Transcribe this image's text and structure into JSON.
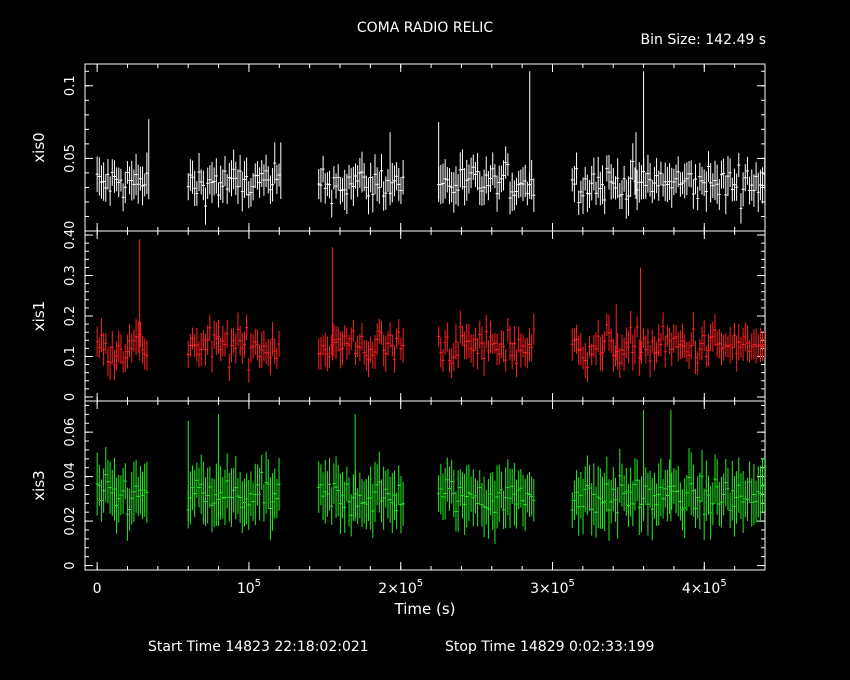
{
  "title": "COMA RADIO RELIC",
  "bin_size_label": "Bin Size:  142.49  s",
  "footer": {
    "start": "Start Time 14823 22:18:02:021",
    "stop": "Stop Time 14829  0:02:33:199"
  },
  "colors": {
    "background": "#000000",
    "axes": "#ffffff",
    "xis0": "#ffffff",
    "xis1": "#ff2020",
    "xis3": "#22ee22"
  },
  "chart_data": {
    "type": "scatter",
    "xlabel": "Time (s)",
    "xlim": [
      -8000,
      440000
    ],
    "x_ticks": [
      {
        "value": 0,
        "label": "0",
        "exp": ""
      },
      {
        "value": 100000,
        "label": "10",
        "exp": "5"
      },
      {
        "value": 200000,
        "label": "2×10",
        "exp": "5"
      },
      {
        "value": 300000,
        "label": "3×10",
        "exp": "5"
      },
      {
        "value": 400000,
        "label": "4×10",
        "exp": "5"
      }
    ],
    "segments": [
      [
        0,
        34000
      ],
      [
        60000,
        121000
      ],
      [
        146000,
        202000
      ],
      [
        225000,
        289000
      ],
      [
        313000,
        440000
      ]
    ],
    "panels": [
      {
        "name": "xis0",
        "ylabel": "xis0",
        "color": "#ffffff",
        "ylim": [
          0.0,
          0.115
        ],
        "y_ticks": [
          {
            "value": 0.05,
            "label": "0.05"
          },
          {
            "value": 0.1,
            "label": "0.1"
          }
        ],
        "base": 0.033,
        "spread": 0.012,
        "err": 0.011,
        "spikes": [
          {
            "x": 34000,
            "y": 0.077
          },
          {
            "x": 121000,
            "y": 0.061
          },
          {
            "x": 193000,
            "y": 0.068
          },
          {
            "x": 225000,
            "y": 0.075
          },
          {
            "x": 285000,
            "y": 0.11
          },
          {
            "x": 360000,
            "y": 0.11
          },
          {
            "x": 355000,
            "y": 0.068
          }
        ]
      },
      {
        "name": "xis1",
        "ylabel": "xis1",
        "color": "#ff2020",
        "ylim": [
          -0.01,
          0.41
        ],
        "y_ticks": [
          {
            "value": 0,
            "label": "0"
          },
          {
            "value": 0.1,
            "label": "0.1"
          },
          {
            "value": 0.2,
            "label": "0.2"
          },
          {
            "value": 0.3,
            "label": "0.3"
          },
          {
            "value": 0.4,
            "label": "0.40"
          }
        ],
        "base": 0.125,
        "spread": 0.045,
        "err": 0.035,
        "spikes": [
          {
            "x": 28000,
            "y": 0.39
          },
          {
            "x": 155000,
            "y": 0.37
          },
          {
            "x": 358000,
            "y": 0.32
          },
          {
            "x": 342000,
            "y": 0.23
          }
        ]
      },
      {
        "name": "xis3",
        "ylabel": "xis3",
        "color": "#22ee22",
        "ylim": [
          -0.002,
          0.074
        ],
        "y_ticks": [
          {
            "value": 0,
            "label": "0"
          },
          {
            "value": 0.02,
            "label": "0.02"
          },
          {
            "value": 0.04,
            "label": "0.04"
          },
          {
            "value": 0.06,
            "label": "0.06"
          }
        ],
        "base": 0.031,
        "spread": 0.008,
        "err": 0.011,
        "spikes": [
          {
            "x": 80000,
            "y": 0.068
          },
          {
            "x": 170000,
            "y": 0.068
          },
          {
            "x": 360000,
            "y": 0.07
          },
          {
            "x": 378000,
            "y": 0.07
          },
          {
            "x": 60000,
            "y": 0.065
          }
        ]
      }
    ]
  }
}
